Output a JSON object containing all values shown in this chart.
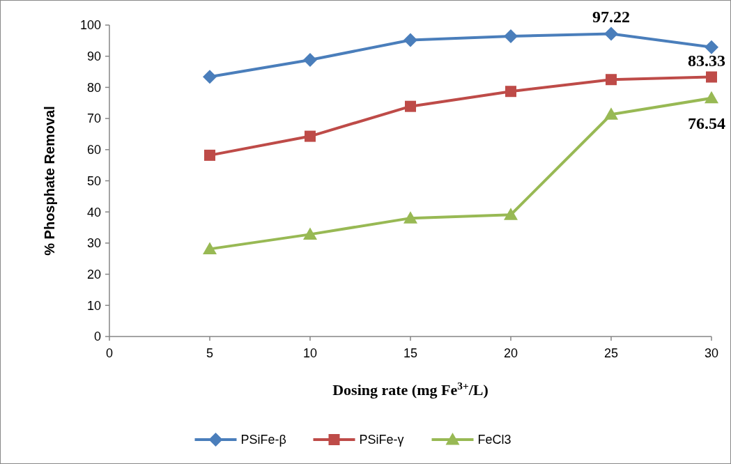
{
  "chart_data": {
    "type": "line",
    "xlabel": "Dosing rate (mg Fe$^{3+}$/L)",
    "ylabel": "% Phosphate Removal",
    "x": [
      5,
      10,
      15,
      20,
      25,
      30
    ],
    "xlim": [
      0,
      30
    ],
    "xticks": [
      0,
      5,
      10,
      15,
      20,
      25,
      30
    ],
    "ylim": [
      0,
      100
    ],
    "yticks": [
      0,
      10,
      20,
      30,
      40,
      50,
      60,
      70,
      80,
      90,
      100
    ],
    "grid": false,
    "legend": "bottom",
    "line_style": "solid",
    "series": [
      {
        "name": "PSiFe-β",
        "color": "#4a7ebb",
        "marker": "diamond",
        "values": [
          83.4,
          88.8,
          95.2,
          96.4,
          97.22,
          92.9
        ],
        "value_labels": [
          null,
          null,
          null,
          null,
          "97.22",
          null
        ]
      },
      {
        "name": "PSiFe-γ",
        "color": "#be4b48",
        "marker": "square",
        "values": [
          58.2,
          64.3,
          73.9,
          78.7,
          82.5,
          83.33
        ],
        "value_labels": [
          null,
          null,
          null,
          null,
          null,
          "83.33"
        ]
      },
      {
        "name": "FeCl3",
        "color": "#98b954",
        "marker": "triangle",
        "values": [
          28.1,
          32.8,
          38.0,
          39.1,
          71.3,
          76.54
        ],
        "value_labels": [
          null,
          null,
          null,
          null,
          null,
          "76.54"
        ]
      }
    ]
  }
}
